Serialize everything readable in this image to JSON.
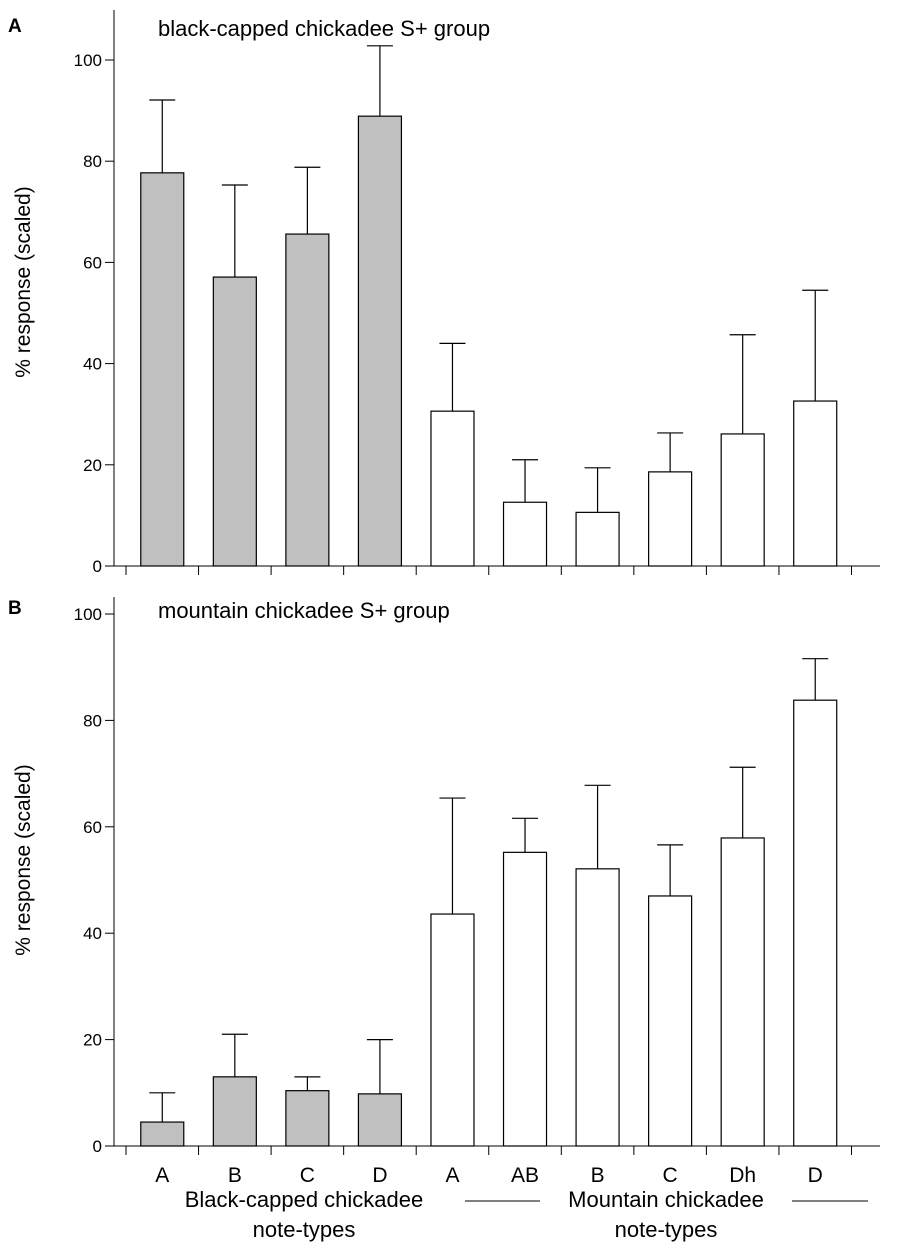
{
  "chart_data": [
    {
      "panel": "A",
      "type": "bar",
      "title": "black-capped chickadee S+  group",
      "ylabel": "% response (scaled)",
      "ylim": [
        0,
        100
      ],
      "yticks": [
        0,
        20,
        40,
        60,
        80,
        100
      ],
      "categories": [
        "A",
        "B",
        "C",
        "D",
        "A",
        "AB",
        "B",
        "C",
        "Dh",
        "D"
      ],
      "groups": [
        "Black-capped chickadee",
        "Black-capped chickadee",
        "Black-capped chickadee",
        "Black-capped chickadee",
        "Mountain chickadee",
        "Mountain chickadee",
        "Mountain chickadee",
        "Mountain chickadee",
        "Mountain chickadee",
        "Mountain chickadee"
      ],
      "values": [
        77.7,
        57.1,
        65.6,
        88.9,
        30.6,
        12.6,
        10.6,
        18.6,
        26.1,
        32.6
      ],
      "error_upper": [
        14.4,
        18.2,
        13.2,
        13.9,
        13.4,
        8.4,
        8.8,
        7.7,
        19.6,
        21.9
      ],
      "show_xticklabels": false
    },
    {
      "panel": "B",
      "type": "bar",
      "title": "mountain chickadee S+ group",
      "ylabel": "% response (scaled)",
      "ylim": [
        0,
        100
      ],
      "yticks": [
        0,
        20,
        40,
        60,
        80,
        100
      ],
      "categories": [
        "A",
        "B",
        "C",
        "D",
        "A",
        "AB",
        "B",
        "C",
        "Dh",
        "D"
      ],
      "groups": [
        "Black-capped chickadee",
        "Black-capped chickadee",
        "Black-capped chickadee",
        "Black-capped chickadee",
        "Mountain chickadee",
        "Mountain chickadee",
        "Mountain chickadee",
        "Mountain chickadee",
        "Mountain chickadee",
        "Mountain chickadee"
      ],
      "values": [
        4.5,
        13.0,
        10.4,
        9.8,
        43.6,
        55.2,
        52.1,
        47.0,
        57.9,
        83.8
      ],
      "error_upper": [
        5.5,
        8.0,
        2.6,
        10.2,
        21.8,
        6.4,
        15.7,
        9.6,
        13.3,
        7.8
      ],
      "show_xticklabels": true
    }
  ],
  "group_labels": {
    "black_capped_line1": "Black-capped chickadee",
    "black_capped_line2": "note-types",
    "mountain_line1": "Mountain chickadee",
    "mountain_line2": "note-types"
  },
  "colors": {
    "Black-capped chickadee": "#c0c0c0",
    "Mountain chickadee": "#ffffff",
    "stroke": "#000000"
  }
}
